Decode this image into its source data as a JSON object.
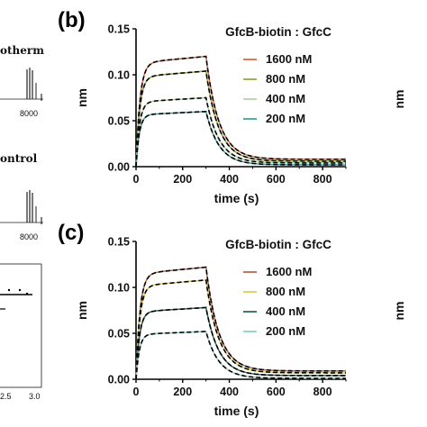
{
  "chart_data": [
    {
      "panel": "(b)",
      "type": "line",
      "title": "GfcB-biotin : GfcC",
      "xlabel": "time (s)",
      "ylabel": "nm",
      "xlim": [
        0,
        900
      ],
      "ylim": [
        0,
        0.15
      ],
      "xticks": [
        "0",
        "200",
        "400",
        "600",
        "800"
      ],
      "yticks": [
        "0.00",
        "0.05",
        "0.10",
        "0.15"
      ],
      "legend_position": "right",
      "grid": false,
      "fit_style": "black dashed",
      "series": [
        {
          "name": "1600 nM",
          "color": "#e06a4a",
          "x": [
            0,
            50,
            100,
            150,
            200,
            250,
            300,
            350,
            400,
            500,
            600,
            700,
            800,
            900
          ],
          "values": [
            0,
            0.113,
            0.116,
            0.117,
            0.117,
            0.118,
            0.12,
            0.05,
            0.026,
            0.012,
            0.009,
            0.008,
            0.008,
            0.008
          ]
        },
        {
          "name": "800 nM",
          "color": "#9aa83e",
          "x": [
            0,
            50,
            100,
            150,
            200,
            250,
            300,
            350,
            400,
            500,
            600,
            700,
            800,
            900
          ],
          "values": [
            0,
            0.096,
            0.1,
            0.101,
            0.102,
            0.102,
            0.104,
            0.043,
            0.022,
            0.01,
            0.007,
            0.006,
            0.006,
            0.006
          ]
        },
        {
          "name": "400 nM",
          "color": "#b8d4a8",
          "x": [
            0,
            50,
            100,
            150,
            200,
            250,
            300,
            350,
            400,
            500,
            600,
            700,
            800,
            900
          ],
          "values": [
            0,
            0.068,
            0.072,
            0.073,
            0.074,
            0.074,
            0.075,
            0.031,
            0.016,
            0.007,
            0.005,
            0.004,
            0.004,
            0.004
          ]
        },
        {
          "name": "200 nM",
          "color": "#3aa7a0",
          "x": [
            0,
            50,
            100,
            150,
            200,
            250,
            300,
            350,
            400,
            500,
            600,
            700,
            800,
            900
          ],
          "values": [
            0,
            0.052,
            0.057,
            0.058,
            0.059,
            0.059,
            0.06,
            0.025,
            0.012,
            0.005,
            0.003,
            0.002,
            0.002,
            0.002
          ]
        }
      ]
    },
    {
      "panel": "(c)",
      "type": "line",
      "title": "GfcB-biotin : GfcC",
      "xlabel": "time (s)",
      "ylabel": "nm",
      "xlim": [
        0,
        900
      ],
      "ylim": [
        0,
        0.15
      ],
      "xticks": [
        "0",
        "200",
        "400",
        "600",
        "800"
      ],
      "yticks": [
        "0.00",
        "0.05",
        "0.10",
        "0.15"
      ],
      "legend_position": "right",
      "grid": false,
      "fit_style": "black dashed",
      "series": [
        {
          "name": "1600 nM",
          "color": "#b5694f",
          "x": [
            0,
            50,
            100,
            150,
            200,
            250,
            300,
            350,
            400,
            500,
            600,
            700,
            800,
            900
          ],
          "values": [
            0,
            0.105,
            0.113,
            0.117,
            0.119,
            0.12,
            0.122,
            0.05,
            0.027,
            0.013,
            0.01,
            0.009,
            0.009,
            0.009
          ]
        },
        {
          "name": "800 nM",
          "color": "#e2cc55",
          "x": [
            0,
            50,
            100,
            150,
            200,
            250,
            300,
            350,
            400,
            500,
            600,
            700,
            800,
            900
          ],
          "values": [
            0,
            0.092,
            0.1,
            0.103,
            0.105,
            0.106,
            0.108,
            0.044,
            0.023,
            0.011,
            0.008,
            0.007,
            0.007,
            0.007
          ]
        },
        {
          "name": "400 nM",
          "color": "#2f6b55",
          "x": [
            0,
            50,
            100,
            150,
            200,
            250,
            300,
            350,
            400,
            500,
            600,
            700,
            800,
            900
          ],
          "values": [
            0,
            0.064,
            0.072,
            0.075,
            0.077,
            0.077,
            0.078,
            0.032,
            0.016,
            0.007,
            0.005,
            0.004,
            0.004,
            0.004
          ]
        },
        {
          "name": "200 nM",
          "color": "#8fd0c8",
          "x": [
            0,
            50,
            100,
            150,
            200,
            250,
            300,
            350,
            400,
            500,
            600,
            700,
            800,
            900
          ],
          "values": [
            0,
            0.042,
            0.048,
            0.05,
            0.051,
            0.051,
            0.052,
            0.021,
            0.01,
            0.004,
            0.002,
            0.001,
            0.001,
            0.001
          ]
        }
      ]
    }
  ],
  "left_fragments": {
    "label_top": "otherm",
    "label_mid": "ontrol",
    "axis_value_top": "8000",
    "axis_value_mid": "8000",
    "tick_left": "2.5",
    "tick_right": "3.0"
  },
  "right_fragments": {
    "ylabel_b": "nm",
    "ylabel_c": "nm"
  }
}
